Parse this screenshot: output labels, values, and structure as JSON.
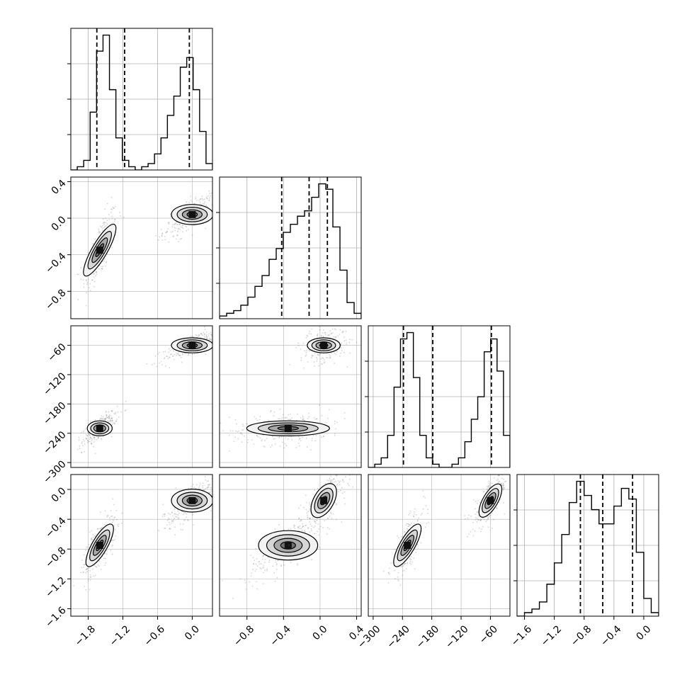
{
  "chart_data": {
    "type": "corner",
    "n_params": 4,
    "grid": true,
    "style": {
      "frame_color": "#000000",
      "grid_color": "#b0b0b0",
      "hist_color": "#000000",
      "point_color": "#808080",
      "contour_color": "#000000"
    },
    "params": [
      {
        "index": 0,
        "range": [
          -2.1,
          0.35
        ],
        "ticks": [
          -1.8,
          -1.2,
          -0.6,
          0.0
        ],
        "tick_labels": [
          "−1.8",
          "−1.2",
          "−0.6",
          "0.0"
        ],
        "quantiles": [
          -1.65,
          -1.17,
          -0.05
        ],
        "hist": [
          0,
          1,
          3,
          18,
          37,
          42,
          25,
          10,
          3,
          1,
          0,
          1,
          2,
          5,
          10,
          17,
          23,
          32,
          35,
          25,
          12,
          2
        ],
        "modes": [
          [
            -1.6,
            0.12,
            0.6
          ],
          [
            0.0,
            0.2,
            0.4
          ]
        ]
      },
      {
        "index": 1,
        "range": [
          -1.1,
          0.45
        ],
        "ticks": [
          -0.8,
          -0.4,
          0.0,
          0.4
        ],
        "tick_labels": [
          "−0.8",
          "−0.4",
          "0.0",
          "0.4"
        ],
        "quantiles": [
          -0.42,
          -0.12,
          0.08
        ],
        "hist": [
          1,
          2,
          3,
          5,
          8,
          12,
          16,
          22,
          26,
          32,
          35,
          38,
          40,
          45,
          50,
          48,
          34,
          18,
          6,
          2
        ],
        "modes": [
          [
            -0.35,
            0.18,
            0.6
          ],
          [
            0.04,
            0.1,
            0.4
          ]
        ]
      },
      {
        "index": 2,
        "range": [
          -310,
          -20
        ],
        "ticks": [
          -300,
          -240,
          -180,
          -120,
          -60
        ],
        "tick_labels": [
          "−300",
          "−240",
          "−180",
          "−120",
          "−60"
        ],
        "quantiles": [
          -238,
          -178,
          -58
        ],
        "hist": [
          0,
          1,
          3,
          10,
          25,
          40,
          42,
          28,
          10,
          3,
          1,
          0,
          0,
          1,
          3,
          8,
          15,
          22,
          36,
          40,
          30,
          10
        ],
        "modes": [
          [
            -230,
            14,
            0.55
          ],
          [
            -60,
            14,
            0.45
          ]
        ]
      },
      {
        "index": 3,
        "range": [
          -1.7,
          0.2
        ],
        "ticks": [
          -1.6,
          -1.2,
          -0.8,
          -0.4,
          0.0
        ],
        "tick_labels": [
          "−1.6",
          "−1.2",
          "−0.8",
          "−0.4",
          "0.0"
        ],
        "quantiles": [
          -0.85,
          -0.55,
          -0.15
        ],
        "hist": [
          0,
          1,
          2,
          4,
          9,
          15,
          23,
          32,
          38,
          34,
          30,
          26,
          26,
          31,
          36,
          33,
          18,
          5,
          1
        ],
        "modes": [
          [
            -0.75,
            0.18,
            0.55
          ],
          [
            -0.15,
            0.14,
            0.45
          ]
        ]
      }
    ]
  }
}
